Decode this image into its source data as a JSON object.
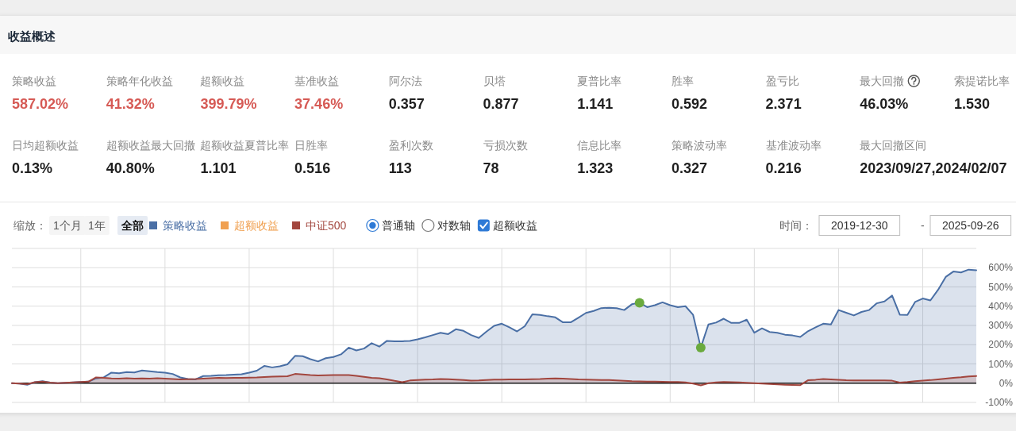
{
  "chart_data": [
    {
      "type": "other",
      "title": "收益概述",
      "categories": [
        "策略收益",
        "策略年化收益",
        "超额收益",
        "基准收益",
        "阿尔法",
        "贝塔",
        "夏普比率",
        "胜率",
        "盈亏比",
        "最大回撤",
        "索提诺比率",
        "日均超额收益",
        "超额收益最大回撤",
        "超额收益夏普比率",
        "日胜率",
        "盈利次数",
        "亏损次数",
        "信息比率",
        "策略波动率",
        "基准波动率",
        "最大回撤区间"
      ],
      "value_labels": [
        "587.02%",
        "41.32%",
        "399.79%",
        "37.46%",
        "0.357",
        "0.877",
        "1.141",
        "0.592",
        "2.371",
        "46.03%",
        "1.530",
        "0.13%",
        "40.80%",
        "1.101",
        "0.516",
        "113",
        "78",
        "1.323",
        "0.327",
        "0.216",
        "2023/09/27,2024/02/07"
      ],
      "colors": [
        "#d65a55",
        "#d65a55",
        "#d65a55",
        "#d65a55",
        "#1f1f1f",
        "#1f1f1f",
        "#1f1f1f",
        "#1f1f1f",
        "#1f1f1f",
        "#1f1f1f",
        "#1f1f1f",
        "#1f1f1f",
        "#1f1f1f",
        "#1f1f1f",
        "#1f1f1f",
        "#1f1f1f",
        "#1f1f1f",
        "#1f1f1f",
        "#1f1f1f",
        "#1f1f1f",
        "#1f1f1f"
      ]
    },
    {
      "type": "line",
      "categories": [
        null,
        null,
        null,
        null,
        null,
        null,
        null,
        null,
        null,
        null,
        null,
        null,
        null,
        null,
        null,
        null,
        null,
        null,
        null,
        null,
        null,
        null,
        null,
        null,
        null,
        null,
        null,
        null,
        null,
        null,
        null,
        null,
        null,
        null,
        null,
        null,
        null,
        null,
        null,
        null,
        null,
        null,
        null,
        null,
        null,
        null,
        null,
        null,
        null,
        null,
        null,
        null,
        null,
        null,
        null,
        null,
        null,
        null,
        null,
        null,
        null,
        null,
        null,
        null,
        null,
        null,
        null,
        null,
        null,
        null,
        null,
        null,
        null,
        null,
        null,
        null,
        null,
        null,
        null,
        null,
        null,
        null,
        null,
        null,
        null,
        null,
        null,
        null,
        null,
        null,
        null,
        null,
        null,
        null,
        null,
        null,
        null,
        null,
        null,
        null,
        null,
        null,
        null,
        null,
        null,
        null,
        null,
        null,
        null,
        null,
        null,
        null,
        null,
        null,
        null,
        null,
        null,
        null,
        null,
        null,
        null,
        null,
        null,
        null,
        null,
        null,
        null
      ],
      "series": [
        {
          "name": "策略收益",
          "type": "area",
          "color": "#4a6fa5",
          "values": [
            0,
            -2,
            -8,
            5,
            10,
            3,
            0,
            2,
            4,
            6,
            8,
            25,
            30,
            55,
            52,
            58,
            56,
            66,
            62,
            58,
            55,
            48,
            30,
            22,
            20,
            37,
            38,
            41,
            42,
            44,
            46,
            55,
            65,
            90,
            82,
            88,
            98,
            142,
            140,
            125,
            113,
            130,
            136,
            150,
            185,
            170,
            180,
            208,
            190,
            220,
            218,
            218,
            220,
            228,
            238,
            250,
            262,
            255,
            280,
            272,
            250,
            235,
            268,
            298,
            309,
            290,
            269,
            296,
            358,
            355,
            348,
            342,
            316,
            316,
            340,
            365,
            375,
            390,
            392,
            390,
            380,
            410,
            418,
            395,
            405,
            420,
            405,
            395,
            400,
            355,
            185,
            305,
            315,
            335,
            313,
            313,
            330,
            262,
            285,
            266,
            262,
            252,
            248,
            240,
            270,
            290,
            309,
            305,
            380,
            366,
            352,
            370,
            380,
            415,
            425,
            455,
            356,
            355,
            422,
            440,
            430,
            485,
            552,
            580,
            575,
            590,
            587
          ]
        },
        {
          "name": "超额收益",
          "color": "#f0a050",
          "values": [
            null,
            null,
            null,
            null,
            null,
            null,
            null,
            null,
            null,
            null,
            null,
            null,
            null,
            null,
            null,
            null,
            null,
            null,
            null,
            null,
            null,
            null,
            null,
            null,
            null,
            null,
            null,
            null,
            null,
            null,
            null,
            null,
            null,
            null,
            null,
            null,
            null,
            null,
            null,
            null,
            null,
            null,
            null,
            null,
            null,
            null,
            null,
            null,
            null,
            null,
            null,
            null,
            null,
            null,
            null,
            null,
            null,
            null,
            null,
            null,
            null,
            null,
            null,
            null,
            null,
            null,
            null,
            null,
            null,
            null,
            null,
            null,
            null,
            null,
            null,
            null,
            null,
            null,
            null,
            null,
            null,
            null,
            null,
            null,
            null,
            null,
            null,
            null,
            null,
            null,
            null,
            null,
            null,
            null,
            null,
            null,
            null,
            null,
            null,
            null,
            null,
            null,
            null,
            null,
            null,
            null,
            null,
            null,
            null,
            null,
            null,
            null,
            null,
            null,
            null,
            null,
            null,
            null,
            null,
            null,
            null,
            null,
            null,
            null,
            null,
            null,
            null
          ]
        },
        {
          "name": "中证500",
          "type": "area",
          "color": "#a2463e",
          "values": [
            0,
            -2,
            -5,
            5,
            8,
            3,
            0,
            2,
            4,
            6,
            8,
            30,
            28,
            25,
            24,
            26,
            24,
            25,
            24,
            26,
            24,
            22,
            20,
            21,
            22,
            24,
            26,
            28,
            27,
            28,
            28,
            29,
            30,
            32,
            34,
            35,
            36,
            48,
            45,
            42,
            40,
            41,
            42,
            42,
            42,
            38,
            33,
            28,
            26,
            20,
            12,
            5,
            14,
            17,
            19,
            20,
            22,
            21,
            19,
            16,
            13,
            14,
            17,
            19,
            19,
            20,
            20,
            20,
            21,
            22,
            24,
            25,
            24,
            22,
            20,
            19,
            18,
            17,
            16,
            14,
            12,
            10,
            9,
            8,
            8,
            7,
            6,
            6,
            4,
            -2,
            -11,
            0,
            4,
            6,
            5,
            4,
            2,
            0,
            -2,
            -4,
            -6,
            -8,
            -9,
            -10,
            15,
            18,
            22,
            20,
            18,
            15,
            14,
            14,
            14,
            14,
            14,
            13,
            3,
            6,
            10,
            13,
            16,
            20,
            24,
            28,
            31,
            35,
            37
          ]
        },
        {
          "type": "scatter",
          "marker": "circle",
          "color": "#6aaa3e",
          "values": [
            null,
            null,
            null,
            null,
            null,
            null,
            null,
            null,
            null,
            null,
            null,
            null,
            null,
            null,
            null,
            null,
            null,
            null,
            null,
            null,
            null,
            null,
            null,
            null,
            null,
            null,
            null,
            null,
            null,
            null,
            null,
            null,
            null,
            null,
            null,
            null,
            null,
            null,
            null,
            null,
            null,
            null,
            null,
            null,
            null,
            null,
            null,
            null,
            null,
            null,
            null,
            null,
            null,
            null,
            null,
            null,
            null,
            null,
            null,
            null,
            null,
            null,
            null,
            null,
            null,
            null,
            null,
            null,
            null,
            null,
            null,
            null,
            null,
            null,
            null,
            null,
            null,
            null,
            null,
            null,
            null,
            null,
            418,
            null,
            null,
            null,
            null,
            null,
            null,
            null,
            185,
            null,
            null,
            null,
            null,
            null,
            null,
            null,
            null,
            null,
            null,
            null,
            null,
            null,
            null,
            null,
            null,
            null,
            null,
            null,
            null,
            null,
            null,
            null,
            null,
            null,
            null,
            null,
            null,
            null,
            null,
            null,
            null,
            null,
            null,
            null,
            null
          ]
        }
      ],
      "ylim": [
        -100,
        700
      ],
      "yticks": [
        {
          "value": -100,
          "label": "-100%"
        },
        {
          "value": 0,
          "label": "0%"
        },
        {
          "value": 100,
          "label": "100%"
        },
        {
          "value": 200,
          "label": "200%"
        },
        {
          "value": 300,
          "label": "300%"
        },
        {
          "value": 400,
          "label": "400%"
        },
        {
          "value": 500,
          "label": "500%"
        },
        {
          "value": 600,
          "label": "600%"
        },
        {
          "value": 700,
          "label": null
        }
      ],
      "grid": true,
      "legend": "top left",
      "ref_lines": [
        {
          "axis": "y",
          "value": 0,
          "color": "#1a1a1a"
        }
      ],
      "annotations": [
        "缩放：",
        "1个月",
        "1年",
        "全部",
        "普通轴",
        "对数轴",
        "超额收益",
        "时间：",
        "2019-12-30",
        "-",
        "2025-09-26"
      ]
    }
  ]
}
